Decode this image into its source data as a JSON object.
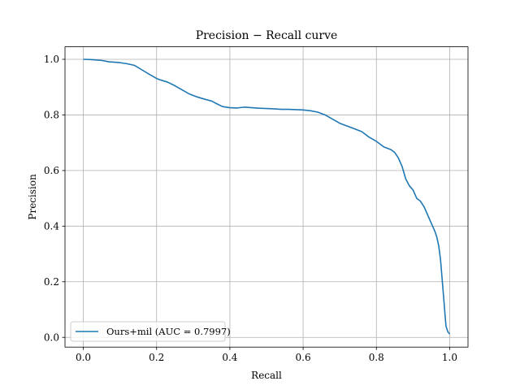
{
  "chart_data": {
    "type": "line",
    "title": "Precision − Recall curve",
    "xlabel": "Recall",
    "ylabel": "Precision",
    "xlim": [
      -0.05,
      1.05
    ],
    "ylim": [
      -0.035,
      1.045
    ],
    "xticks": [
      0.0,
      0.2,
      0.4,
      0.6,
      0.8,
      1.0
    ],
    "xtick_labels": [
      "0.0",
      "0.2",
      "0.4",
      "0.6",
      "0.8",
      "1.0"
    ],
    "yticks": [
      0.0,
      0.2,
      0.4,
      0.6,
      0.8,
      1.0
    ],
    "ytick_labels": [
      "0.0",
      "0.2",
      "0.4",
      "0.6",
      "0.8",
      "1.0"
    ],
    "grid": true,
    "legend_position": "lower-left",
    "series": [
      {
        "name": "Ours+mil (AUC = 0.7997)",
        "color": "#1f77b4",
        "x": [
          0.0,
          0.02,
          0.05,
          0.07,
          0.1,
          0.12,
          0.14,
          0.16,
          0.18,
          0.2,
          0.21,
          0.23,
          0.25,
          0.27,
          0.29,
          0.31,
          0.33,
          0.35,
          0.36,
          0.38,
          0.4,
          0.42,
          0.44,
          0.46,
          0.48,
          0.5,
          0.52,
          0.54,
          0.56,
          0.58,
          0.6,
          0.62,
          0.64,
          0.66,
          0.68,
          0.7,
          0.72,
          0.74,
          0.76,
          0.78,
          0.8,
          0.82,
          0.84,
          0.85,
          0.86,
          0.87,
          0.88,
          0.89,
          0.9,
          0.91,
          0.92,
          0.93,
          0.94,
          0.95,
          0.96,
          0.965,
          0.97,
          0.975,
          0.98,
          0.985,
          0.988,
          0.99,
          0.995,
          1.0
        ],
        "y": [
          1.0,
          0.999,
          0.996,
          0.991,
          0.988,
          0.984,
          0.978,
          0.962,
          0.946,
          0.931,
          0.926,
          0.918,
          0.905,
          0.89,
          0.875,
          0.865,
          0.857,
          0.85,
          0.843,
          0.83,
          0.826,
          0.825,
          0.828,
          0.826,
          0.824,
          0.823,
          0.822,
          0.82,
          0.82,
          0.819,
          0.818,
          0.815,
          0.81,
          0.8,
          0.785,
          0.77,
          0.76,
          0.75,
          0.74,
          0.72,
          0.705,
          0.685,
          0.675,
          0.665,
          0.645,
          0.615,
          0.57,
          0.545,
          0.53,
          0.5,
          0.49,
          0.47,
          0.44,
          0.41,
          0.38,
          0.36,
          0.33,
          0.28,
          0.2,
          0.12,
          0.07,
          0.04,
          0.02,
          0.012
        ]
      }
    ]
  }
}
